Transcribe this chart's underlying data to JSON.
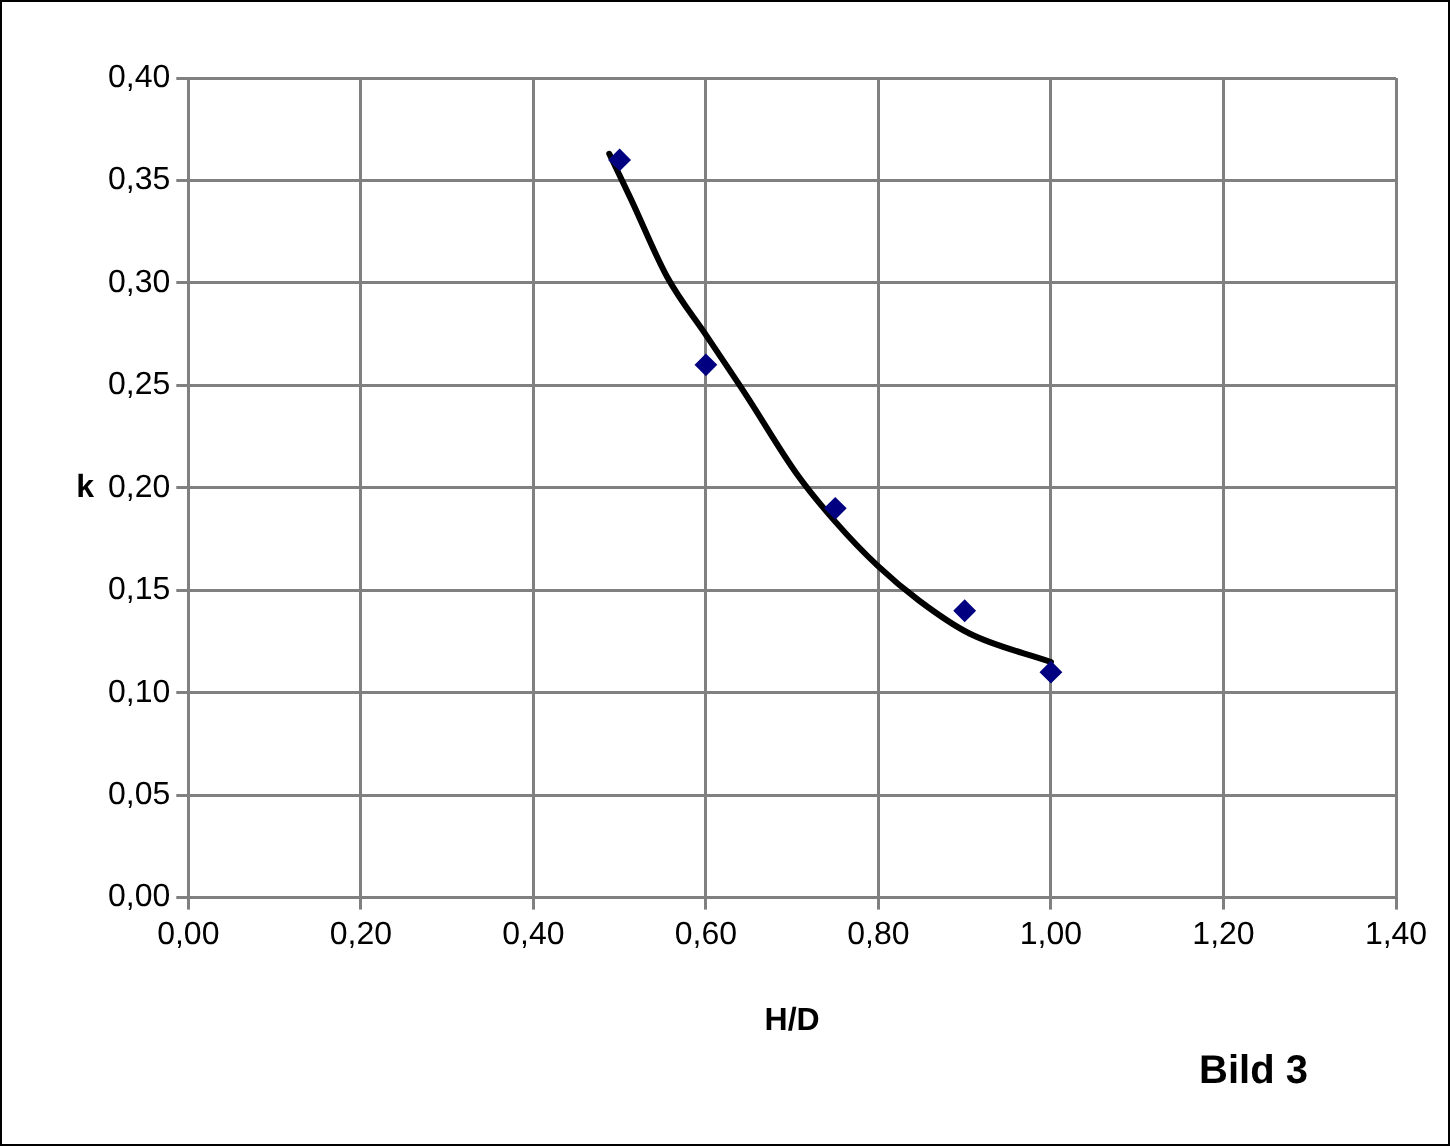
{
  "chart_data": {
    "type": "scatter",
    "xlabel": "H/D",
    "ylabel": "k",
    "annotations": [
      "Bild 3"
    ],
    "series": [
      {
        "type": "scatter",
        "color": "#000080",
        "marker": "diamond",
        "x": [
          0.5,
          0.6,
          0.75,
          0.9,
          1.0
        ],
        "values": [
          0.36,
          0.26,
          0.19,
          0.14,
          0.11
        ]
      },
      {
        "type": "line",
        "color": "#000000",
        "marker": "none",
        "line_style": "solid",
        "x": [
          0.488,
          0.513,
          0.555,
          0.601,
          0.647,
          0.705,
          0.751,
          0.799,
          0.847,
          0.905,
          1.0
        ],
        "values": [
          0.363,
          0.341,
          0.303,
          0.274,
          0.245,
          0.207,
          0.183,
          0.162,
          0.145,
          0.129,
          0.115
        ]
      }
    ],
    "xlim": [
      0,
      1.4
    ],
    "xticks": [
      {
        "value": 0,
        "label": "0,00"
      },
      {
        "value": 0.2,
        "label": "0,20"
      },
      {
        "value": 0.4,
        "label": "0,40"
      },
      {
        "value": 0.6,
        "label": "0,60"
      },
      {
        "value": 0.8,
        "label": "0,80"
      },
      {
        "value": 1.0,
        "label": "1,00"
      },
      {
        "value": 1.2,
        "label": "1,20"
      },
      {
        "value": 1.4,
        "label": "1,40"
      }
    ],
    "ylim": [
      0,
      0.4
    ],
    "yticks": [
      {
        "value": 0,
        "label": "0,00"
      },
      {
        "value": 0.05,
        "label": "0,05"
      },
      {
        "value": 0.1,
        "label": "0,10"
      },
      {
        "value": 0.15,
        "label": "0,15"
      },
      {
        "value": 0.2,
        "label": "0,20"
      },
      {
        "value": 0.25,
        "label": "0,25"
      },
      {
        "value": 0.3,
        "label": "0,30"
      },
      {
        "value": 0.35,
        "label": "0,35"
      },
      {
        "value": 0.4,
        "label": "0,40"
      }
    ],
    "grid": true,
    "legend": false
  }
}
